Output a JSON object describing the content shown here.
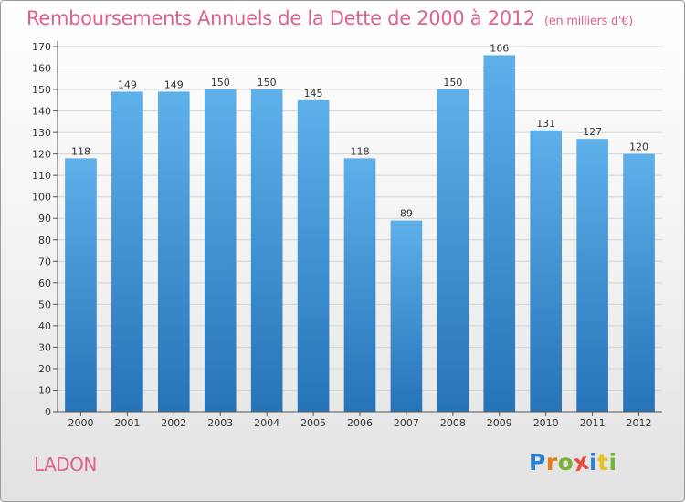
{
  "title": "Remboursements Annuels de la Dette de 2000 à 2012",
  "title_unit": "(en milliers d'€)",
  "place": "LADON",
  "logo": {
    "text": "Proxiti",
    "letters": [
      {
        "ch": "P",
        "color": "#2e7fd0"
      },
      {
        "ch": "r",
        "color": "#e87b1e"
      },
      {
        "ch": "o",
        "color": "#78b233"
      },
      {
        "ch": "x",
        "color": "#e84a3c"
      },
      {
        "ch": "i",
        "color": "#2e7fd0"
      },
      {
        "ch": "t",
        "color": "#e8c21e"
      },
      {
        "ch": "i",
        "color": "#78b233"
      }
    ]
  },
  "colors": {
    "title": "#e0608f",
    "bar_top": "#5eb0ea",
    "bar_bottom": "#2673b8",
    "grid": "#d4d4d4",
    "axis": "#555555",
    "label": "#333333"
  },
  "chart_data": {
    "type": "bar",
    "categories": [
      "2000",
      "2001",
      "2002",
      "2003",
      "2004",
      "2005",
      "2006",
      "2007",
      "2008",
      "2009",
      "2010",
      "2011",
      "2012"
    ],
    "values": [
      118,
      149,
      149,
      150,
      150,
      145,
      118,
      89,
      150,
      166,
      131,
      127,
      120
    ],
    "ylim": [
      0,
      170
    ],
    "yticks": [
      0,
      10,
      20,
      30,
      40,
      50,
      60,
      70,
      80,
      90,
      100,
      110,
      120,
      130,
      140,
      150,
      160,
      170
    ],
    "grid": true,
    "data_labels": true
  }
}
